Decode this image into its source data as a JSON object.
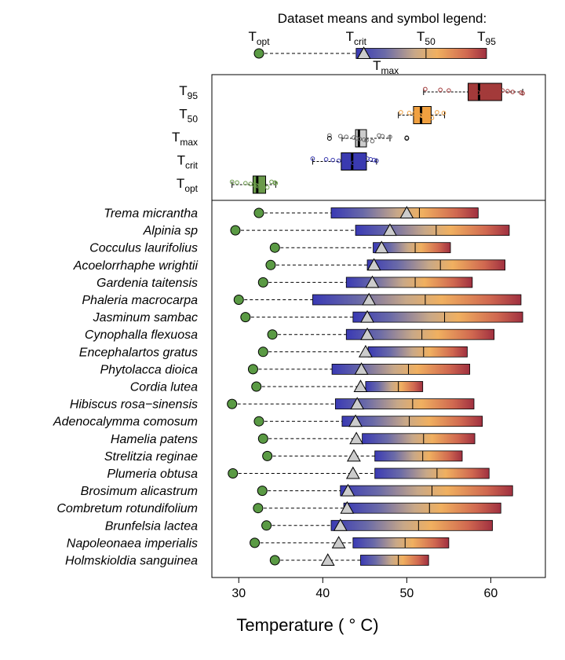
{
  "chart_data": [
    {
      "type": "legend",
      "title": "Dataset means and symbol legend:",
      "labels": {
        "t_opt": "T",
        "t_opt_sub": "opt",
        "t_crit": "T",
        "t_crit_sub": "crit",
        "t_50": "T",
        "t_50_sub": "50",
        "t_95": "T",
        "t_95_sub": "95",
        "t_max": "T",
        "t_max_sub": "max"
      },
      "means": {
        "t_opt": 32.1,
        "t_crit": 43.5,
        "t_max": 44.4,
        "t_50": 51.7,
        "t_95": 58.8
      }
    },
    {
      "type": "boxplot",
      "categories": [
        "T95",
        "T50",
        "Tmax",
        "Tcrit",
        "Topt"
      ],
      "category_labels": [
        {
          "main": "T",
          "sub": "95"
        },
        {
          "main": "T",
          "sub": "50"
        },
        {
          "main": "T",
          "sub": "max"
        },
        {
          "main": "T",
          "sub": "crit"
        },
        {
          "main": "T",
          "sub": "opt"
        }
      ],
      "colors": {
        "T95": "#a33a3a",
        "T50": "#f0a040",
        "Tmax": "#cccccc",
        "Tcrit": "#3a3ab0",
        "Topt": "#6a9a4a"
      },
      "boxes": [
        {
          "name": "T95",
          "min": 52.0,
          "q1": 57.3,
          "median": 58.6,
          "q3": 61.3,
          "max": 63.8,
          "outliers": []
        },
        {
          "name": "T50",
          "min": 49.0,
          "q1": 50.8,
          "median": 51.7,
          "q3": 52.9,
          "max": 54.5,
          "outliers": []
        },
        {
          "name": "Tmax",
          "min": 42.3,
          "q1": 43.9,
          "median": 44.3,
          "q3": 45.2,
          "max": 48.0,
          "outliers": [
            40.8,
            50.0
          ]
        },
        {
          "name": "Tcrit",
          "min": 38.8,
          "q1": 42.2,
          "median": 43.5,
          "q3": 45.2,
          "max": 46.4,
          "outliers": []
        },
        {
          "name": "Topt",
          "min": 29.2,
          "q1": 31.7,
          "median": 32.2,
          "q3": 33.2,
          "max": 34.4,
          "outliers": []
        }
      ],
      "points": {
        "T95": [
          52.2,
          54.0,
          55.0,
          57.6,
          58.1,
          58.5,
          58.9,
          59.6,
          60.2,
          60.5,
          61.0,
          61.4,
          62.0,
          62.6,
          63.6,
          63.8
        ],
        "T50": [
          49.3,
          50.3,
          50.9,
          51.3,
          51.6,
          51.8,
          52.0,
          52.5,
          53.0,
          53.6,
          54.4
        ],
        "Tmax": [
          40.8,
          42.1,
          42.8,
          43.7,
          44.0,
          44.4,
          44.9,
          45.2,
          45.9,
          46.7,
          47.1,
          48.0,
          50.0
        ],
        "Tcrit": [
          38.8,
          40.4,
          41.2,
          41.9,
          42.5,
          42.9,
          43.6,
          44.1,
          44.7,
          45.3,
          45.7,
          46.1,
          46.4
        ],
        "Topt": [
          29.2,
          29.8,
          30.8,
          31.4,
          31.8,
          32.1,
          32.3,
          32.9,
          33.4,
          33.9,
          34.3,
          34.4
        ]
      }
    },
    {
      "type": "range",
      "xlabel": "Temperature ( ° C)",
      "xlim": [
        26.8,
        66.5
      ],
      "xticks": [
        30,
        40,
        50,
        60
      ],
      "series_note": [
        "circle = Topt",
        "triangle = Tmax",
        "bar = Tcrit to T95 with T50 line"
      ],
      "species": [
        {
          "name": "Trema micrantha",
          "topt": 32.4,
          "tcrit": 41.0,
          "tmax": 50.0,
          "t50": 51.5,
          "t95": 58.5
        },
        {
          "name": "Alpinia sp",
          "topt": 29.6,
          "tcrit": 43.9,
          "tmax": 48.0,
          "t50": 53.5,
          "t95": 62.2
        },
        {
          "name": "Cocculus laurifolius",
          "topt": 34.3,
          "tcrit": 46.0,
          "tmax": 47.0,
          "t50": 51.0,
          "t95": 55.2
        },
        {
          "name": "Acoelorrhaphe wrightii",
          "topt": 33.8,
          "tcrit": 45.3,
          "tmax": 46.1,
          "t50": 54.0,
          "t95": 61.7
        },
        {
          "name": "Gardenia taitensis",
          "topt": 32.9,
          "tcrit": 42.8,
          "tmax": 45.9,
          "t50": 51.0,
          "t95": 57.8
        },
        {
          "name": "Phaleria macrocarpa",
          "topt": 30.0,
          "tcrit": 38.8,
          "tmax": 45.5,
          "t50": 52.2,
          "t95": 63.6
        },
        {
          "name": "Jasminum sambac",
          "topt": 30.8,
          "tcrit": 43.6,
          "tmax": 45.3,
          "t50": 54.5,
          "t95": 63.8
        },
        {
          "name": "Cynophalla flexuosa",
          "topt": 34.0,
          "tcrit": 42.8,
          "tmax": 45.3,
          "t50": 51.8,
          "t95": 60.4
        },
        {
          "name": "Encephalartos gratus",
          "topt": 32.9,
          "tcrit": 45.4,
          "tmax": 45.1,
          "t50": 52.0,
          "t95": 57.2
        },
        {
          "name": "Phytolacca dioica",
          "topt": 31.7,
          "tcrit": 41.1,
          "tmax": 44.6,
          "t50": 50.2,
          "t95": 57.5
        },
        {
          "name": "Cordia lutea",
          "topt": 32.1,
          "tcrit": 45.1,
          "tmax": 44.5,
          "t50": 49.0,
          "t95": 51.9
        },
        {
          "name": "Hibiscus rosa−sinensis",
          "topt": 29.2,
          "tcrit": 41.5,
          "tmax": 44.1,
          "t50": 50.7,
          "t95": 58.0
        },
        {
          "name": "Adenocalymma comosum",
          "topt": 32.4,
          "tcrit": 42.3,
          "tmax": 43.9,
          "t50": 50.3,
          "t95": 59.0
        },
        {
          "name": "Hamelia patens",
          "topt": 32.9,
          "tcrit": 44.7,
          "tmax": 44.0,
          "t50": 52.0,
          "t95": 58.1
        },
        {
          "name": "Strelitzia reginae",
          "topt": 33.4,
          "tcrit": 46.2,
          "tmax": 43.7,
          "t50": 51.9,
          "t95": 56.6
        },
        {
          "name": "Plumeria obtusa",
          "topt": 29.3,
          "tcrit": 46.2,
          "tmax": 43.6,
          "t50": 53.6,
          "t95": 59.8
        },
        {
          "name": "Brosimum alicastrum",
          "topt": 32.8,
          "tcrit": 42.1,
          "tmax": 43.0,
          "t50": 53.0,
          "t95": 62.6
        },
        {
          "name": "Combretum rotundifolium",
          "topt": 32.3,
          "tcrit": 42.5,
          "tmax": 42.9,
          "t50": 52.7,
          "t95": 61.2
        },
        {
          "name": "Brunfelsia lactea",
          "topt": 33.3,
          "tcrit": 41.0,
          "tmax": 42.1,
          "t50": 51.4,
          "t95": 60.2
        },
        {
          "name": "Napoleonaea imperialis",
          "topt": 31.9,
          "tcrit": 43.6,
          "tmax": 41.9,
          "t50": 49.8,
          "t95": 55.0
        },
        {
          "name": "Holmskioldia sanguinea",
          "topt": 34.3,
          "tcrit": 44.5,
          "tmax": 40.6,
          "t50": 49.0,
          "t95": 52.6
        }
      ]
    }
  ]
}
